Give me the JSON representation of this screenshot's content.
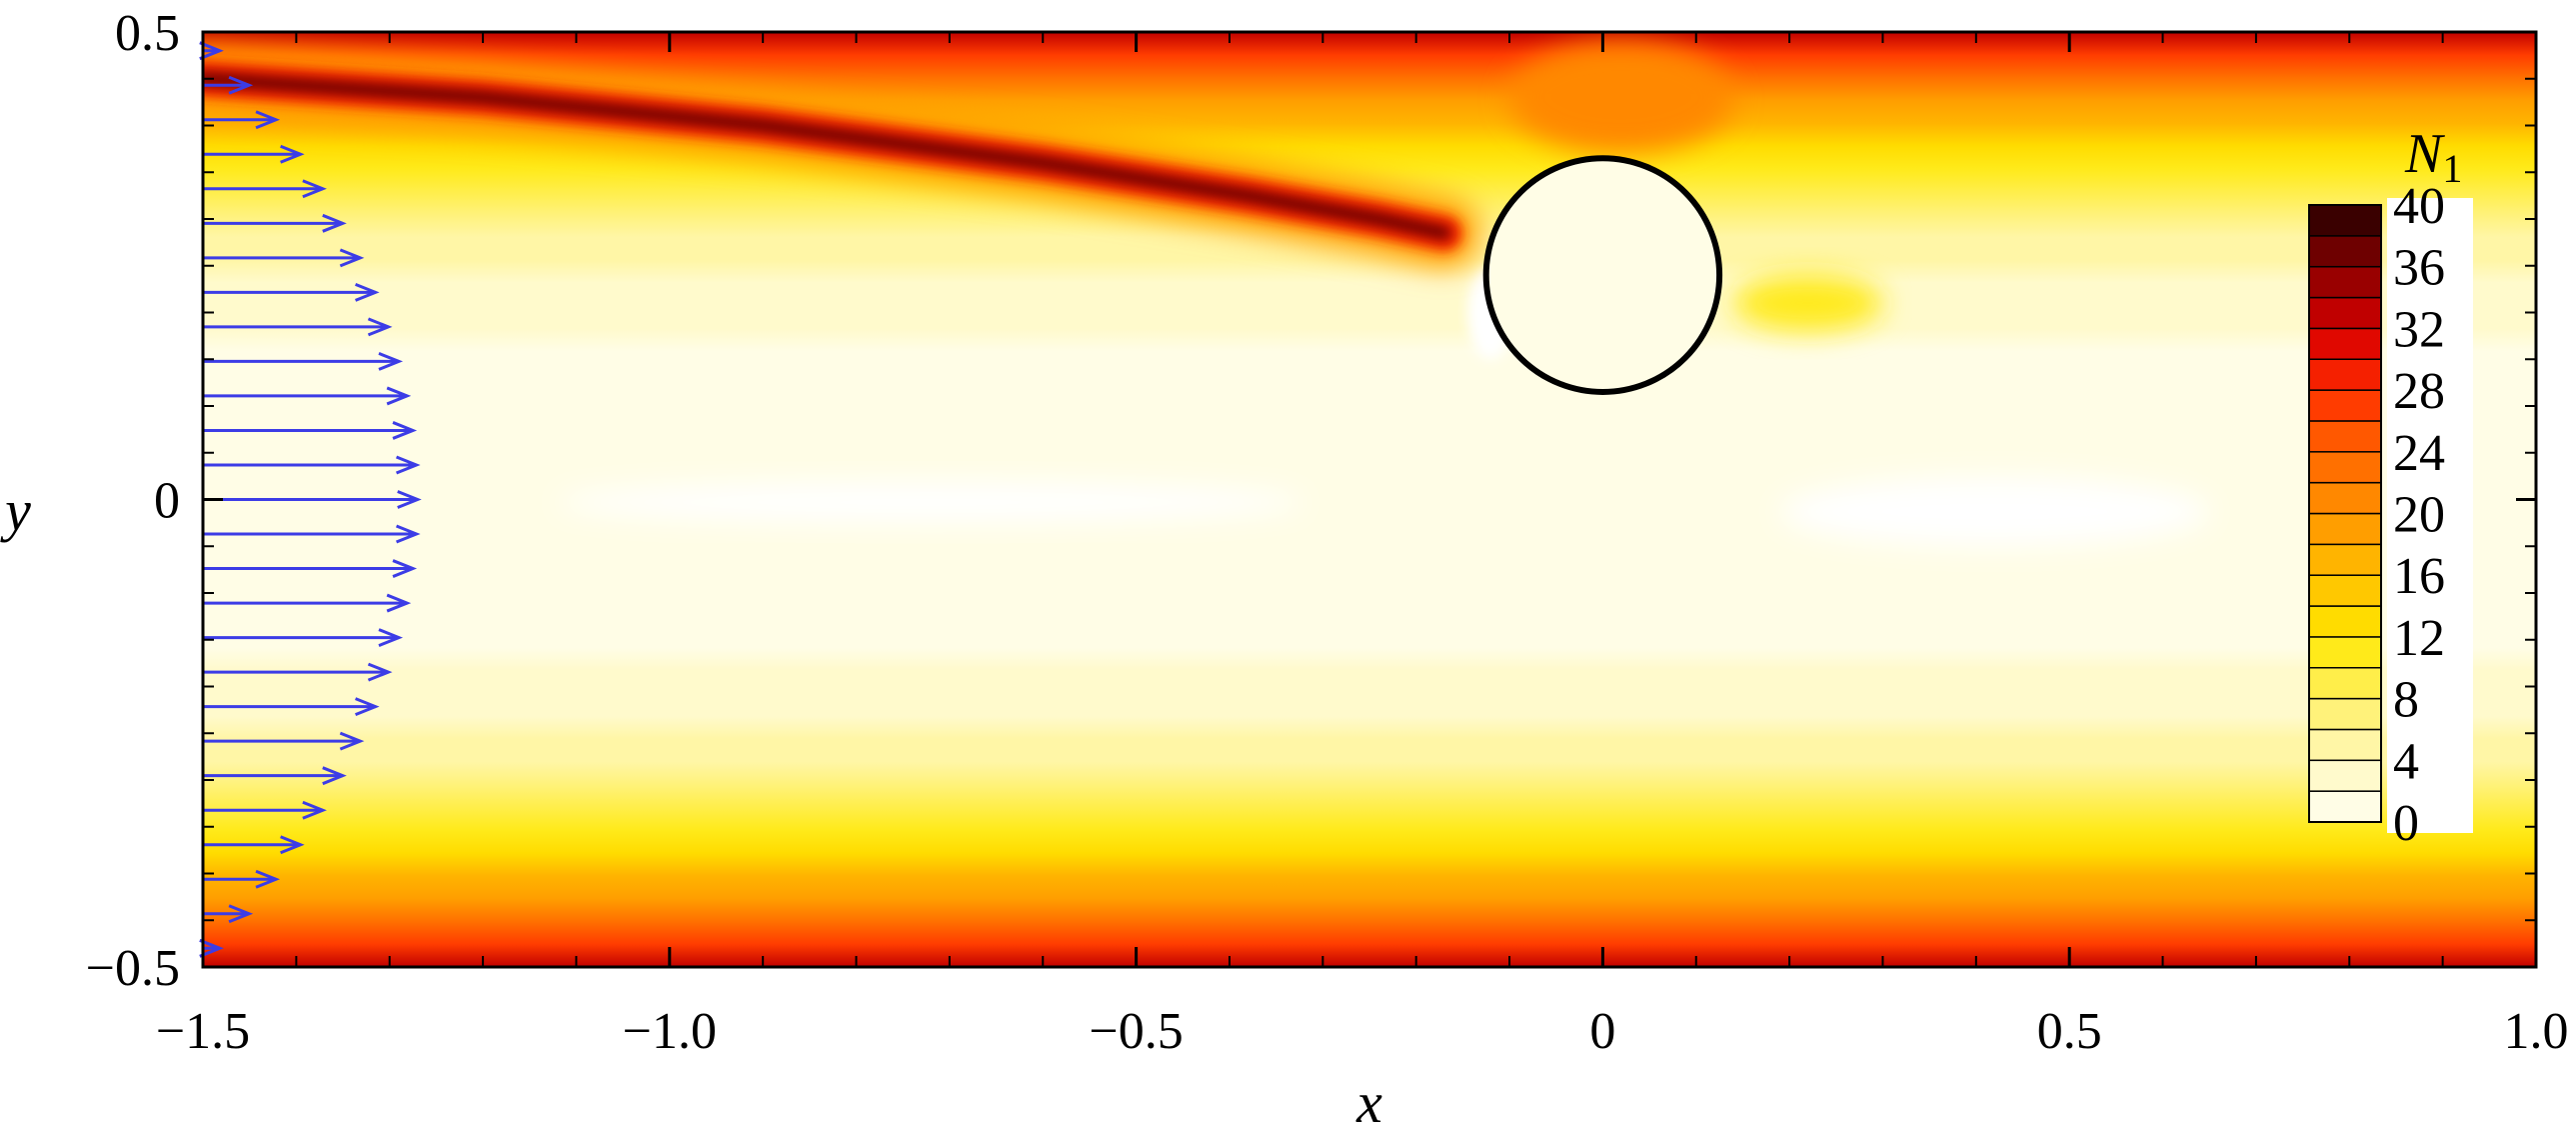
{
  "chart_data": {
    "type": "heatmap",
    "title": "",
    "xlabel": "x",
    "ylabel": "y",
    "xlim": [
      -1.5,
      1.0
    ],
    "ylim": [
      -0.5,
      0.5
    ],
    "x_ticks": [
      -1.5,
      -1.0,
      -0.5,
      0,
      0.5,
      1.0
    ],
    "x_tick_labels": [
      "−1.5",
      "−1.0",
      "−0.5",
      "0",
      "0.5",
      "1.0"
    ],
    "y_ticks": [
      -0.5,
      0,
      0.5
    ],
    "y_tick_labels": [
      "−0.5",
      "0",
      "0.5"
    ],
    "colorbar": {
      "title": "N",
      "title_subscript": "1",
      "range": [
        0,
        40
      ],
      "levels": [
        0,
        2,
        4,
        6,
        8,
        10,
        12,
        14,
        16,
        18,
        20,
        22,
        24,
        26,
        28,
        30,
        32,
        34,
        36,
        38,
        40
      ],
      "tick_values": [
        40,
        36,
        32,
        28,
        24,
        20,
        16,
        12,
        8,
        4,
        0
      ],
      "tick_labels": [
        "40",
        "36",
        "32",
        "28",
        "24",
        "20",
        "16",
        "12",
        "8",
        "4",
        "0"
      ],
      "colors": [
        "#ffffff",
        "#fffde6",
        "#fffacc",
        "#fff6a6",
        "#fff27a",
        "#ffee4a",
        "#ffea1a",
        "#ffdc00",
        "#ffc800",
        "#ffb400",
        "#ff9e00",
        "#ff8800",
        "#ff7000",
        "#ff5800",
        "#ff3c00",
        "#f52000",
        "#e00800",
        "#c00000",
        "#990000",
        "#6e0000",
        "#3a0000"
      ]
    },
    "cylinder": {
      "center": [
        0,
        0.24
      ],
      "radius": 0.125
    },
    "inlet_profile": {
      "x_base": -1.5,
      "type": "parabolic",
      "arrow_count": 27
    }
  }
}
